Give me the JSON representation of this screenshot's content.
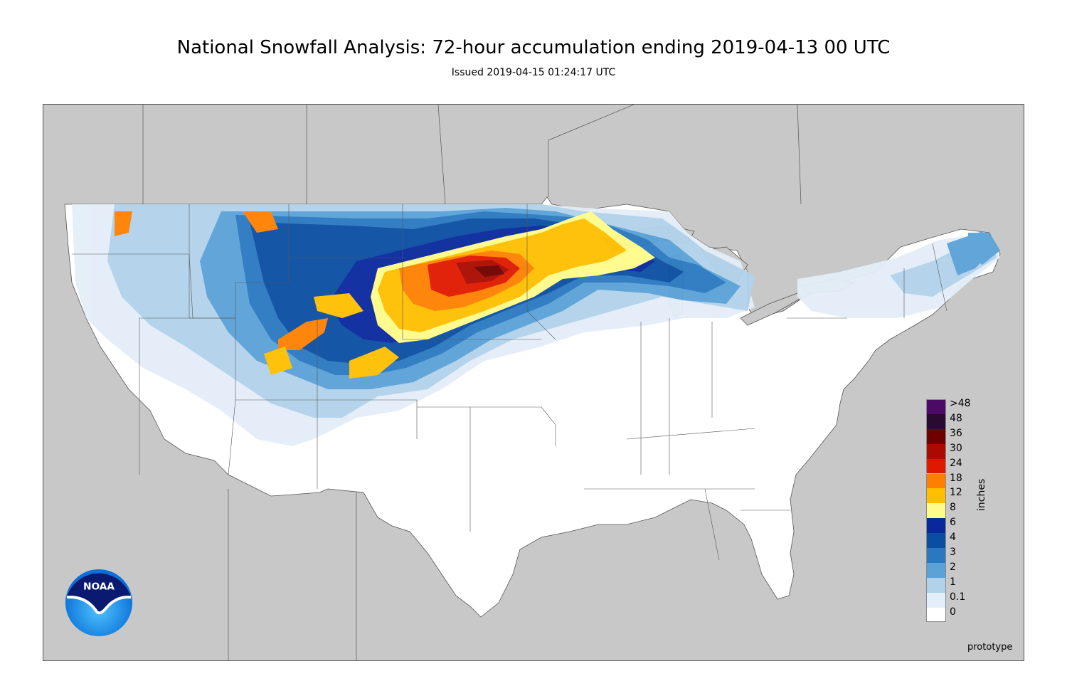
{
  "header": {
    "title": "National Snowfall Analysis: 72-hour accumulation ending 2019-04-13 00 UTC",
    "subtitle": "Issued 2019-04-15 01:24:17 UTC"
  },
  "legend": {
    "unit": "inches",
    "bins": [
      {
        "label": ">48",
        "color": "#4a0a66"
      },
      {
        "label": "48",
        "color": "#2a0a30"
      },
      {
        "label": "36",
        "color": "#6e0000"
      },
      {
        "label": "30",
        "color": "#aa0a00"
      },
      {
        "label": "24",
        "color": "#e01800"
      },
      {
        "label": "18",
        "color": "#ff8000"
      },
      {
        "label": "12",
        "color": "#ffbf00"
      },
      {
        "label": "8",
        "color": "#fffb8a"
      },
      {
        "label": "6",
        "color": "#08289c"
      },
      {
        "label": "4",
        "color": "#0a4ea2"
      },
      {
        "label": "3",
        "color": "#2a78c0"
      },
      {
        "label": "2",
        "color": "#5aa2d8"
      },
      {
        "label": "1",
        "color": "#b2d2ea"
      },
      {
        "label": "0.1",
        "color": "#e4eef8"
      },
      {
        "label": "0",
        "color": "#ffffff"
      }
    ]
  },
  "footer": {
    "note": "prototype",
    "logo_text": "NOAA"
  },
  "colors": {
    "background": "#c8c8c8",
    "land": "#ffffff",
    "boundary": "#555555"
  }
}
